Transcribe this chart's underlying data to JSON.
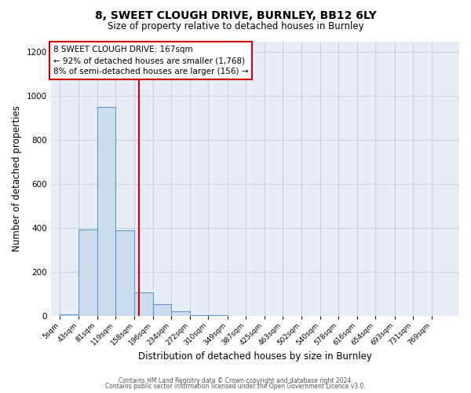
{
  "title": "8, SWEET CLOUGH DRIVE, BURNLEY, BB12 6LY",
  "subtitle": "Size of property relative to detached houses in Burnley",
  "xlabel": "Distribution of detached houses by size in Burnley",
  "ylabel": "Number of detached properties",
  "bar_labels": [
    "5sqm",
    "43sqm",
    "81sqm",
    "119sqm",
    "158sqm",
    "196sqm",
    "234sqm",
    "272sqm",
    "310sqm",
    "349sqm",
    "387sqm",
    "425sqm",
    "463sqm",
    "502sqm",
    "540sqm",
    "578sqm",
    "616sqm",
    "654sqm",
    "693sqm",
    "731sqm",
    "769sqm"
  ],
  "bar_values": [
    10,
    395,
    950,
    390,
    110,
    55,
    23,
    5,
    5,
    0,
    3,
    0,
    0,
    0,
    0,
    0,
    0,
    0,
    0,
    0,
    0
  ],
  "bar_color": "#ccdded",
  "bar_edge_color": "#5b9bd5",
  "bg_color": "#e8eef8",
  "grid_color": "#c8d0dc",
  "property_line_color": "#cc0000",
  "annotation_text": "8 SWEET CLOUGH DRIVE: 167sqm\n← 92% of detached houses are smaller (1,768)\n8% of semi-detached houses are larger (156) →",
  "annotation_box_color": "#cc0000",
  "ylim": [
    0,
    1250
  ],
  "bin_width": 38,
  "property_bin_index": 4,
  "footer1": "Contains HM Land Registry data © Crown copyright and database right 2024.",
  "footer2": "Contains public sector information licensed under the Open Government Licence v3.0."
}
